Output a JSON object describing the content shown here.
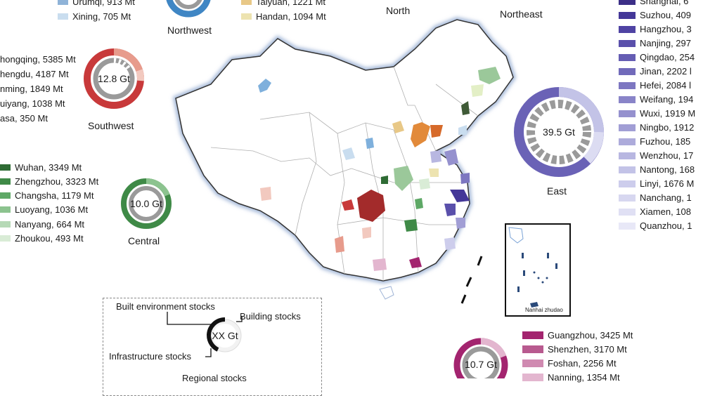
{
  "regions": {
    "north": "North",
    "northeast": "Northeast",
    "northwest": "Northwest",
    "southwest": "Southwest",
    "central": "Central",
    "east": "East"
  },
  "northwest_legend": [
    {
      "label": "Urumqi, 913 Mt",
      "color": "#8fb3d8"
    },
    {
      "label": "Xining, 705 Mt",
      "color": "#c9ddef"
    }
  ],
  "north_legend": [
    {
      "label": "Taiyuan, 1221 Mt",
      "color": "#e8c887"
    },
    {
      "label": "Handan, 1094 Mt",
      "color": "#ede3b0"
    }
  ],
  "southwest": {
    "total": "12.8 Gt",
    "legend": [
      {
        "label": "hongqing, 5385 Mt",
        "color": "#a32b2b"
      },
      {
        "label": "hengdu, 4187 Mt",
        "color": "#c8393a"
      },
      {
        "label": "nming, 1849 Mt",
        "color": "#d96a5e"
      },
      {
        "label": "uiyang, 1038 Mt",
        "color": "#e79b8c"
      },
      {
        "label": "asa, 350 Mt",
        "color": "#f2c9bf"
      }
    ]
  },
  "central": {
    "total": "10.0 Gt",
    "legend": [
      {
        "label": "Wuhan, 3349 Mt",
        "color": "#2e6b34"
      },
      {
        "label": "Zhengzhou, 3323 Mt",
        "color": "#3f8a47"
      },
      {
        "label": "Changsha, 1179 Mt",
        "color": "#5ea866"
      },
      {
        "label": "Luoyang, 1036 Mt",
        "color": "#8cc38f"
      },
      {
        "label": "Nanyang, 664 Mt",
        "color": "#b6d9b6"
      },
      {
        "label": "Zhoukou, 493 Mt",
        "color": "#d9ecd6"
      }
    ]
  },
  "east": {
    "total": "39.5 Gt",
    "legend": [
      {
        "label": "Shanghai, 6",
        "color": "#3c2f87"
      },
      {
        "label": "Suzhou, 409",
        "color": "#443798"
      },
      {
        "label": "Hangzhou, 3",
        "color": "#4f43a3"
      },
      {
        "label": "Nanjing, 297",
        "color": "#5a50ab"
      },
      {
        "label": "Qingdao, 254",
        "color": "#655db3"
      },
      {
        "label": "Jinan, 2202 l",
        "color": "#716aba"
      },
      {
        "label": "Hefei, 2084 l",
        "color": "#7d77c1"
      },
      {
        "label": "Weifang, 194",
        "color": "#8984c8"
      },
      {
        "label": "Wuxi, 1919 M",
        "color": "#9591ce"
      },
      {
        "label": "Ningbo, 1912",
        "color": "#a19ed5"
      },
      {
        "label": "Fuzhou, 185",
        "color": "#adabdb"
      },
      {
        "label": "Wenzhou, 17",
        "color": "#b8b7e1"
      },
      {
        "label": "Nantong, 168",
        "color": "#c3c3e7"
      },
      {
        "label": "Linyi, 1676 M",
        "color": "#cdcdec"
      },
      {
        "label": "Nanchang, 1",
        "color": "#d7d7f0"
      },
      {
        "label": "Xiamen, 108",
        "color": "#e0e0f4"
      },
      {
        "label": "Quanzhou, 1",
        "color": "#e8e8f7"
      }
    ]
  },
  "south": {
    "total": "10.7 Gt",
    "legend": [
      {
        "label": "Guangzhou, 3425 Mt",
        "color": "#a3246f"
      },
      {
        "label": "Shenzhen, 3170 Mt",
        "color": "#b85a8f"
      },
      {
        "label": "Foshan, 2256 Mt",
        "color": "#d08ab1"
      },
      {
        "label": "Nanning, 1354 Mt",
        "color": "#e3b6cf"
      }
    ]
  },
  "key": {
    "built_environment": "Built environment stocks",
    "building": "Building stocks",
    "infrastructure": "Infrastructure stocks",
    "center": "XX Gt",
    "regional": "Regional stocks"
  },
  "inset_label": "Nanhai zhudao"
}
